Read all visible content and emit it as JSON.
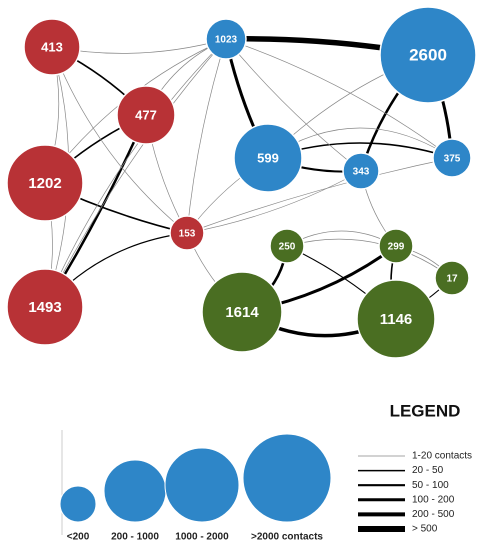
{
  "nodes": [
    {
      "label": "413"
    },
    {
      "label": "477"
    },
    {
      "label": "1202"
    },
    {
      "label": "1493"
    },
    {
      "label": "153"
    },
    {
      "label": "1023"
    },
    {
      "label": "2600"
    },
    {
      "label": "599"
    },
    {
      "label": "343"
    },
    {
      "label": "375"
    },
    {
      "label": "250"
    },
    {
      "label": "299"
    },
    {
      "label": "17"
    },
    {
      "label": "1614"
    },
    {
      "label": "1146"
    }
  ],
  "legend": {
    "title": "LEGEND",
    "sizes": [
      "<200",
      "200 - 1000",
      "1000 - 2000",
      ">2000 contacts"
    ],
    "lines": [
      "1-20 contacts",
      "20 - 50",
      "50 - 100",
      "100 - 200",
      "200 - 500",
      "> 500"
    ]
  }
}
